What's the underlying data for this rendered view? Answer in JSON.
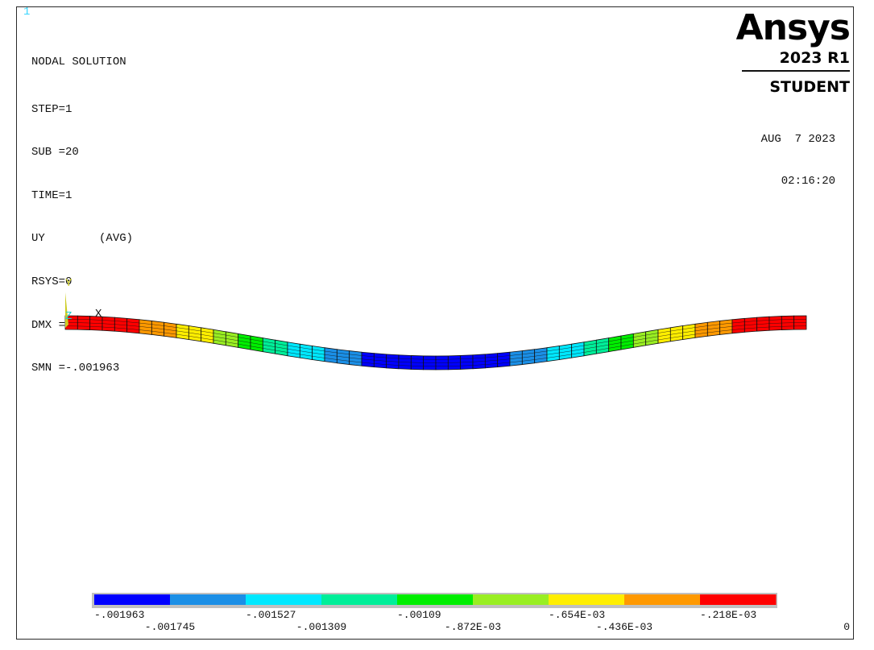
{
  "window_number": "1",
  "plot_info": {
    "title": "NODAL SOLUTION",
    "lines": [
      "STEP=1",
      "SUB =20",
      "TIME=1",
      "UY        (AVG)",
      "RSYS=0",
      "DMX =.001963",
      "SMN =-.001963"
    ]
  },
  "brand": {
    "name": "Ansys",
    "version": "2023 R1",
    "edition": "STUDENT"
  },
  "datetime": {
    "date": "AUG  7 2023",
    "time": "02:16:20"
  },
  "triad": {
    "y_label": "Y",
    "z_label": "Z",
    "x_label": "X"
  },
  "legend": {
    "colors": [
      "#0000ff",
      "#1b8fe6",
      "#00e8ff",
      "#00ee99",
      "#00ee00",
      "#99ee22",
      "#ffee00",
      "#ff9900",
      "#ff0000"
    ],
    "labels_top": [
      "-.001963",
      "-.001527",
      "-.00109",
      "-.654E-03",
      "-.218E-03"
    ],
    "labels_bottom": [
      "-.001745",
      "-.001309",
      "-.872E-03",
      "-.436E-03",
      "0"
    ]
  },
  "model": {
    "description_of_result": "UY deflection, beam in bending",
    "element_count": 60,
    "max_deflection": 0.001963,
    "support_fraction": [
      0.0,
      1.0
    ]
  }
}
